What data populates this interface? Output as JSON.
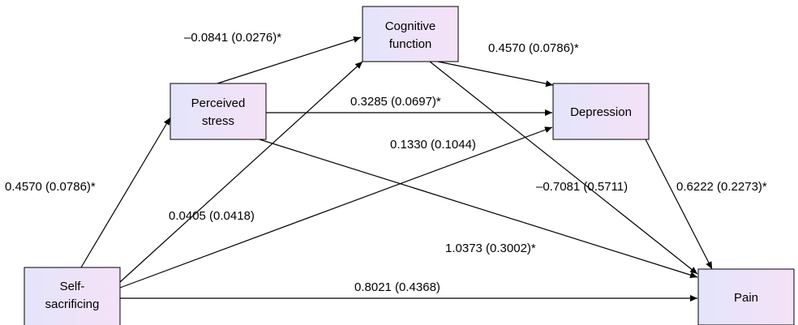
{
  "colors": {
    "box_fill_start": "#e4e4fa",
    "box_fill_end": "#f5e2f7",
    "stroke": "#000000"
  },
  "nodes": {
    "self_sacrificing": {
      "lines": [
        "Self-",
        "sacrificing"
      ]
    },
    "perceived_stress": {
      "lines": [
        "Perceived",
        "stress"
      ]
    },
    "cognitive_function": {
      "lines": [
        "Cognitive",
        "function"
      ]
    },
    "depression": {
      "lines": [
        "Depression"
      ]
    },
    "pain": {
      "lines": [
        "Pain"
      ]
    }
  },
  "paths": [
    {
      "from": "self_sacrificing",
      "to": "perceived_stress",
      "label": "0.4570 (0.0786)*"
    },
    {
      "from": "perceived_stress",
      "to": "cognitive_function",
      "label": "–0.0841 (0.0276)*"
    },
    {
      "from": "cognitive_function",
      "to": "depression",
      "label": "0.4570 (0.0786)*"
    },
    {
      "from": "perceived_stress",
      "to": "depression",
      "label": "0.3285 (0.0697)*"
    },
    {
      "from": "self_sacrificing",
      "to": "depression",
      "label": "0.1330 (0.1044)"
    },
    {
      "from": "self_sacrificing",
      "to": "cognitive_function",
      "label": "0.0405 (0.0418)"
    },
    {
      "from": "cognitive_function",
      "to": "pain",
      "label": "–0.7081 (0.5711)"
    },
    {
      "from": "depression",
      "to": "pain",
      "label": "0.6222 (0.2273)*"
    },
    {
      "from": "perceived_stress",
      "to": "pain",
      "label": "1.0373 (0.3002)*"
    },
    {
      "from": "self_sacrificing",
      "to": "pain",
      "label": "0.8021 (0.4368)"
    }
  ]
}
